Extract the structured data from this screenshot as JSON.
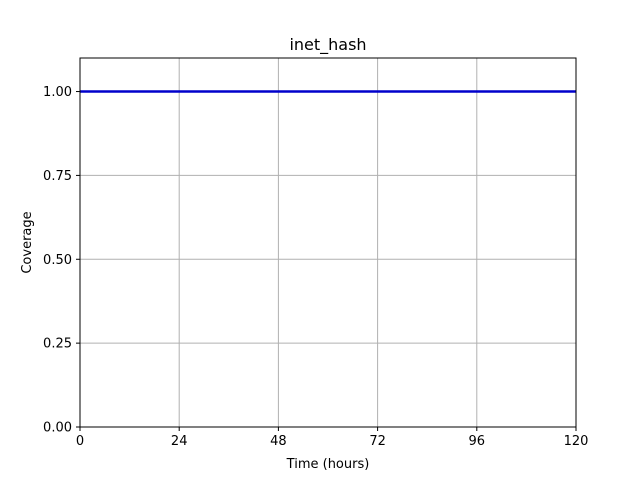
{
  "chart_data": {
    "type": "line",
    "title": "inet_hash",
    "xlabel": "Time (hours)",
    "ylabel": "Coverage",
    "xlim": [
      0,
      120
    ],
    "ylim": [
      0,
      1.1
    ],
    "xticks": [
      0,
      24,
      48,
      72,
      96,
      120
    ],
    "yticks": [
      0.0,
      0.25,
      0.5,
      0.75,
      1.0
    ],
    "xtick_labels": [
      "0",
      "24",
      "48",
      "72",
      "96",
      "120"
    ],
    "ytick_labels": [
      "0.00",
      "0.25",
      "0.50",
      "0.75",
      "1.00"
    ],
    "grid": true,
    "series": [
      {
        "x": [
          0,
          120
        ],
        "y": [
          1.0,
          1.0
        ],
        "color": "#0000cc"
      }
    ]
  },
  "colors": {
    "grid": "#b0b0b0",
    "axes": "#000000",
    "line": "#0000cc"
  }
}
